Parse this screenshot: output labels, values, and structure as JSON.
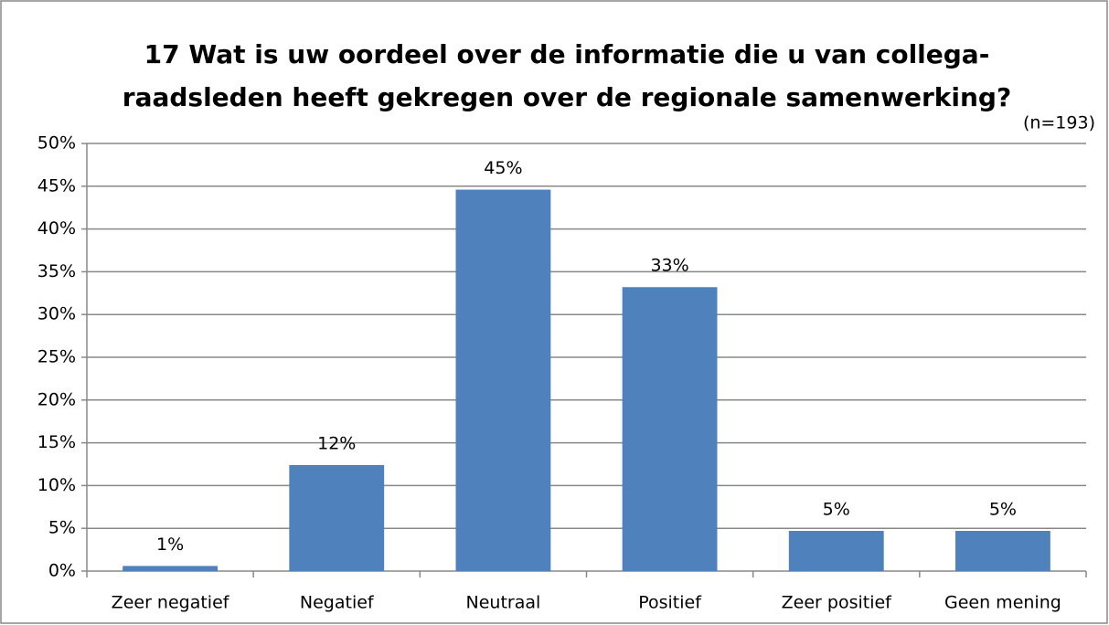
{
  "chart_data": {
    "type": "bar",
    "title": "17 Wat is uw oordeel over de informatie die u van collega-raadsleden heeft gekregen over de regionale samenwerking?",
    "subtitle": "(n=193)",
    "categories": [
      "Zeer negatief",
      "Negatief",
      "Neutraal",
      "Positief",
      "Zeer positief",
      "Geen mening"
    ],
    "values": [
      0.6,
      12.4,
      44.6,
      33.2,
      4.7,
      4.7
    ],
    "value_labels": [
      "1%",
      "12%",
      "45%",
      "33%",
      "5%",
      "5%"
    ],
    "color": "#4f81bd",
    "ylim": [
      0,
      50
    ],
    "yticks": [
      {
        "value": 0,
        "label": "0%"
      },
      {
        "value": 5,
        "label": "5%"
      },
      {
        "value": 10,
        "label": "10%"
      },
      {
        "value": 15,
        "label": "15%"
      },
      {
        "value": 20,
        "label": "20%"
      },
      {
        "value": 25,
        "label": "25%"
      },
      {
        "value": 30,
        "label": "30%"
      },
      {
        "value": 35,
        "label": "35%"
      },
      {
        "value": 40,
        "label": "40%"
      },
      {
        "value": 45,
        "label": "45%"
      },
      {
        "value": 50,
        "label": "50%"
      }
    ],
    "grid": true
  }
}
